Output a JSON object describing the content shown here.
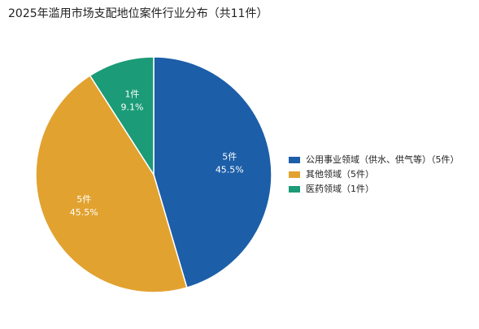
{
  "chart_data": {
    "type": "pie",
    "title": "2025年滥用市场支配地位案件行业分布（共11件）",
    "categories": [
      "公用事业领域（供水、供气等）（5件）",
      "其他领域（5件）",
      "医药领域（1件）"
    ],
    "values": [
      5,
      5,
      1
    ],
    "value_labels": [
      "5件",
      "5件",
      "1件"
    ],
    "percentages": [
      45.5,
      45.5,
      9.1
    ],
    "percentage_labels": [
      "45.5%",
      "45.5%",
      "9.1%"
    ],
    "colors": [
      "#1c5ea8",
      "#e2a230",
      "#1b9b77"
    ],
    "legend": "right"
  }
}
